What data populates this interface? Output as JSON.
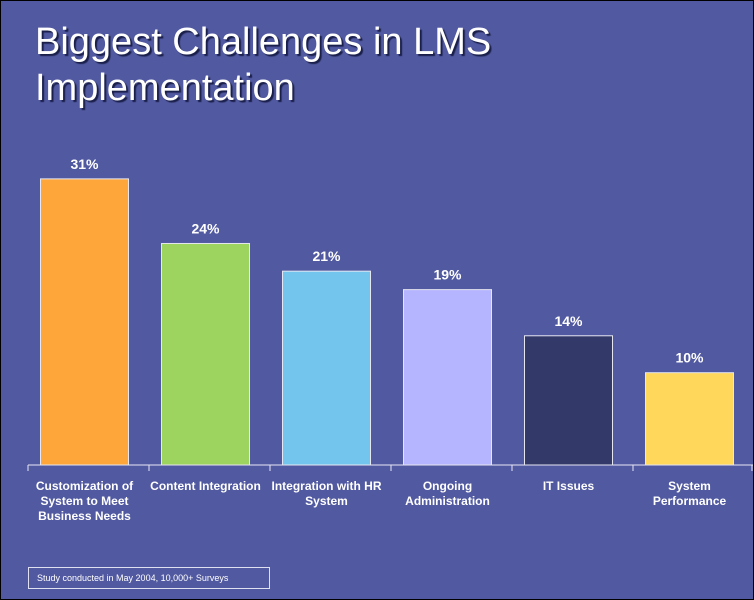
{
  "chart_data": {
    "type": "bar",
    "title": "Biggest Challenges in LMS Implementation",
    "categories": [
      "Customization of System to Meet Business Needs",
      "Content Integration",
      "Integration with HR System",
      "Ongoing Administration",
      "IT Issues",
      "System Performance"
    ],
    "values": [
      31,
      24,
      21,
      19,
      14,
      10
    ],
    "value_labels": [
      "31%",
      "24%",
      "21%",
      "19%",
      "14%",
      "10%"
    ],
    "colors": [
      "#ffa63a",
      "#9dd35f",
      "#74c5ee",
      "#b4b4ff",
      "#333a6a",
      "#ffd75a"
    ],
    "annotation": "Study conducted in May 2004, 10,000+ Surveys"
  }
}
